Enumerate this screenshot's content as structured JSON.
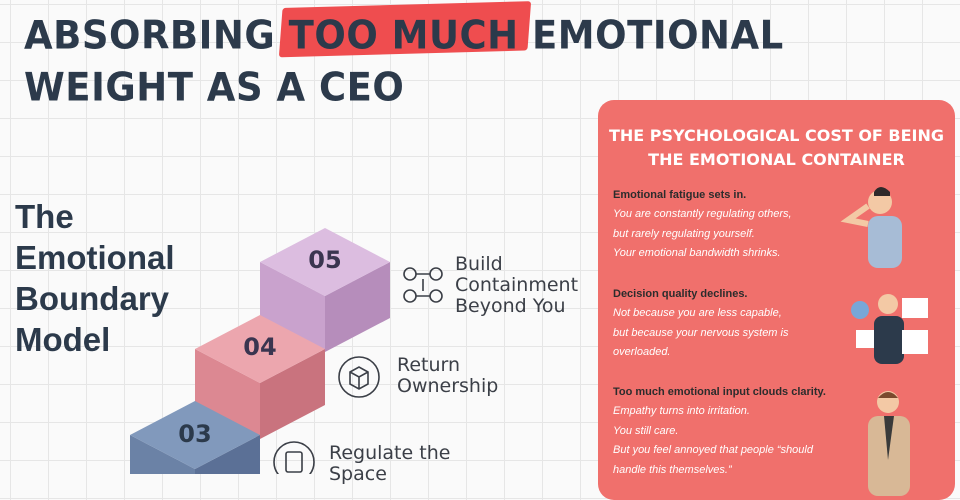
{
  "header": {
    "title_line1_start": "ABSORBING",
    "title_highlight": "TOO MUCH",
    "title_line1_end": "EMOTIONAL",
    "title_line2": "WEIGHT AS A CEO"
  },
  "model": {
    "title": "The Emotional Boundary Model",
    "steps": [
      {
        "number": "05",
        "label": "Build Containment Beyond You"
      },
      {
        "number": "04",
        "label": "Return Ownership"
      },
      {
        "number": "03",
        "label": "Regulate the Space"
      }
    ]
  },
  "panel": {
    "title": "THE PSYCHOLOGICAL COST OF BEING THE EMOTIONAL CONTAINER",
    "sections": [
      {
        "heading": "Emotional fatigue sets in.",
        "lines": [
          "You are constantly regulating others,",
          "but rarely regulating yourself.",
          "Your emotional bandwidth shrinks."
        ]
      },
      {
        "heading": "Decision quality declines.",
        "lines": [
          "Not because you are less capable,",
          "but because your nervous system is",
          "overloaded."
        ]
      },
      {
        "heading": "Too much emotional input clouds clarity.",
        "lines": [
          "Empathy turns into irritation.",
          "You still care.",
          "But you feel annoyed that people “should",
          "handle this themselves.”"
        ]
      }
    ]
  }
}
